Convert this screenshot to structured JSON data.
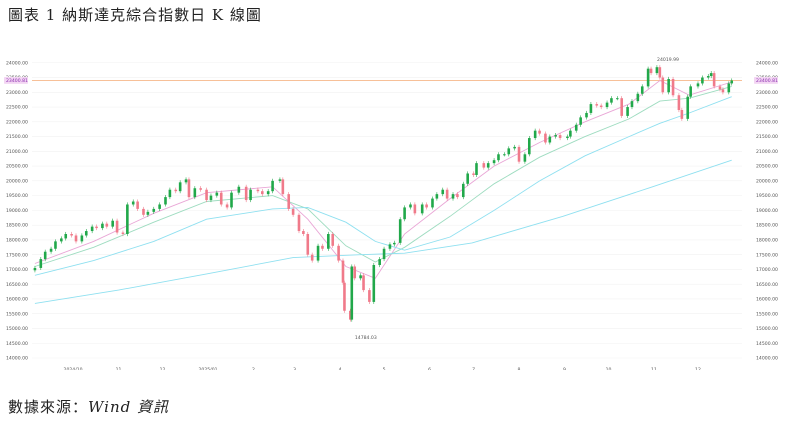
{
  "title": "圖表 1 納斯達克綜合指數日 K 線圖",
  "source": {
    "label": "數據來源：",
    "value": "Wind 資訊"
  },
  "colors": {
    "up": "#21a84a",
    "down": "#f07a8a",
    "ma_short": "#e9a6d6",
    "ma_mid": "#9edcc0",
    "ma_long": "#8fe0f0",
    "price_line": "#f6b78a",
    "price_label_bg": "#f3d6f3"
  },
  "chart_data": {
    "type": "candlestick",
    "title": "",
    "xlabel": "",
    "ylabel": "",
    "ylim": [
      14000,
      24500
    ],
    "yticks": [
      "24000.00",
      "23500.00",
      "23000.00",
      "22500.00",
      "22000.00",
      "21500.00",
      "21000.00",
      "20500.00",
      "20000.00",
      "19500.00",
      "19000.00",
      "18500.00",
      "18000.00",
      "17500.00",
      "17000.00",
      "16500.00",
      "16000.00",
      "15500.00",
      "15000.00",
      "14500.00",
      "14000.00"
    ],
    "x_labels": [
      "2024/10",
      "11",
      "12",
      "2025/01",
      "2",
      "3",
      "4",
      "5",
      "6",
      "7",
      "8",
      "9",
      "10",
      "11",
      "12"
    ],
    "current_price": 23400.81,
    "current_price_label": "23400.81",
    "annotations": [
      {
        "label": "24019.99",
        "value": 24019.99,
        "position": "late-Oct 2025 high"
      },
      {
        "label": "14784.03",
        "value": 14784.03,
        "position": "early-Apr 2025 low"
      }
    ],
    "series": [
      {
        "type": "candlestick",
        "points": [
          {
            "x": "2024-09-05",
            "close": 17050
          },
          {
            "x": "2024-09-09",
            "close": 17350
          },
          {
            "x": "2024-09-12",
            "close": 17600
          },
          {
            "x": "2024-09-16",
            "close": 17700
          },
          {
            "x": "2024-09-19",
            "close": 17950
          },
          {
            "x": "2024-09-23",
            "close": 18050
          },
          {
            "x": "2024-09-26",
            "close": 18200
          },
          {
            "x": "2024-09-30",
            "close": 18150
          },
          {
            "x": "2024-10-03",
            "close": 17950
          },
          {
            "x": "2024-10-07",
            "close": 18150
          },
          {
            "x": "2024-10-10",
            "close": 18300
          },
          {
            "x": "2024-10-14",
            "close": 18450
          },
          {
            "x": "2024-10-17",
            "close": 18400
          },
          {
            "x": "2024-10-21",
            "close": 18550
          },
          {
            "x": "2024-10-24",
            "close": 18450
          },
          {
            "x": "2024-10-28",
            "close": 18650
          },
          {
            "x": "2024-10-31",
            "close": 18250
          },
          {
            "x": "2024-11-04",
            "close": 18200
          },
          {
            "x": "2024-11-07",
            "close": 19200
          },
          {
            "x": "2024-11-11",
            "close": 19300
          },
          {
            "x": "2024-11-14",
            "close": 19050
          },
          {
            "x": "2024-11-18",
            "close": 18850
          },
          {
            "x": "2024-11-21",
            "close": 18950
          },
          {
            "x": "2024-11-25",
            "close": 19050
          },
          {
            "x": "2024-11-29",
            "close": 19200
          },
          {
            "x": "2024-12-03",
            "close": 19450
          },
          {
            "x": "2024-12-06",
            "close": 19700
          },
          {
            "x": "2024-12-10",
            "close": 19650
          },
          {
            "x": "2024-12-13",
            "close": 19950
          },
          {
            "x": "2024-12-17",
            "close": 20050
          },
          {
            "x": "2024-12-19",
            "close": 19450
          },
          {
            "x": "2024-12-23",
            "close": 19750
          },
          {
            "x": "2024-12-27",
            "close": 19700
          },
          {
            "x": "2024-12-31",
            "close": 19350
          },
          {
            "x": "2025-01-03",
            "close": 19500
          },
          {
            "x": "2025-01-07",
            "close": 19600
          },
          {
            "x": "2025-01-10",
            "close": 19200
          },
          {
            "x": "2025-01-14",
            "close": 19100
          },
          {
            "x": "2025-01-17",
            "close": 19600
          },
          {
            "x": "2025-01-22",
            "close": 19800
          },
          {
            "x": "2025-01-27",
            "close": 19350
          },
          {
            "x": "2025-01-30",
            "close": 19700
          },
          {
            "x": "2025-02-04",
            "close": 19650
          },
          {
            "x": "2025-02-07",
            "close": 19550
          },
          {
            "x": "2025-02-11",
            "close": 19650
          },
          {
            "x": "2025-02-14",
            "close": 20000
          },
          {
            "x": "2025-02-19",
            "close": 20050
          },
          {
            "x": "2025-02-21",
            "close": 19550
          },
          {
            "x": "2025-02-25",
            "close": 19050
          },
          {
            "x": "2025-02-28",
            "close": 18850
          },
          {
            "x": "2025-03-04",
            "close": 18300
          },
          {
            "x": "2025-03-07",
            "close": 18200
          },
          {
            "x": "2025-03-10",
            "close": 17500
          },
          {
            "x": "2025-03-13",
            "close": 17300
          },
          {
            "x": "2025-03-17",
            "close": 17800
          },
          {
            "x": "2025-03-20",
            "close": 17700
          },
          {
            "x": "2025-03-24",
            "close": 18200
          },
          {
            "x": "2025-03-27",
            "close": 17800
          },
          {
            "x": "2025-03-31",
            "close": 17300
          },
          {
            "x": "2025-04-03",
            "close": 16550
          },
          {
            "x": "2025-04-04",
            "close": 15600
          },
          {
            "x": "2025-04-08",
            "close": 15300
          },
          {
            "x": "2025-04-09",
            "close": 17100
          },
          {
            "x": "2025-04-11",
            "close": 16700
          },
          {
            "x": "2025-04-15",
            "close": 16800
          },
          {
            "x": "2025-04-17",
            "close": 16300
          },
          {
            "x": "2025-04-21",
            "close": 15900
          },
          {
            "x": "2025-04-24",
            "close": 17150
          },
          {
            "x": "2025-04-28",
            "close": 17350
          },
          {
            "x": "2025-05-01",
            "close": 17700
          },
          {
            "x": "2025-05-05",
            "close": 17850
          },
          {
            "x": "2025-05-08",
            "close": 17900
          },
          {
            "x": "2025-05-12",
            "close": 18700
          },
          {
            "x": "2025-05-15",
            "close": 19100
          },
          {
            "x": "2025-05-19",
            "close": 19200
          },
          {
            "x": "2025-05-22",
            "close": 18900
          },
          {
            "x": "2025-05-27",
            "close": 19200
          },
          {
            "x": "2025-05-30",
            "close": 19100
          },
          {
            "x": "2025-06-03",
            "close": 19400
          },
          {
            "x": "2025-06-06",
            "close": 19550
          },
          {
            "x": "2025-06-10",
            "close": 19700
          },
          {
            "x": "2025-06-13",
            "close": 19400
          },
          {
            "x": "2025-06-17",
            "close": 19550
          },
          {
            "x": "2025-06-20",
            "close": 19450
          },
          {
            "x": "2025-06-24",
            "close": 19900
          },
          {
            "x": "2025-06-27",
            "close": 20250
          },
          {
            "x": "2025-07-01",
            "close": 20200
          },
          {
            "x": "2025-07-03",
            "close": 20600
          },
          {
            "x": "2025-07-08",
            "close": 20450
          },
          {
            "x": "2025-07-11",
            "close": 20600
          },
          {
            "x": "2025-07-15",
            "close": 20700
          },
          {
            "x": "2025-07-18",
            "close": 20900
          },
          {
            "x": "2025-07-22",
            "close": 20900
          },
          {
            "x": "2025-07-25",
            "close": 21100
          },
          {
            "x": "2025-07-29",
            "close": 21150
          },
          {
            "x": "2025-08-01",
            "close": 20650
          },
          {
            "x": "2025-08-05",
            "close": 20900
          },
          {
            "x": "2025-08-08",
            "close": 21450
          },
          {
            "x": "2025-08-12",
            "close": 21700
          },
          {
            "x": "2025-08-15",
            "close": 21600
          },
          {
            "x": "2025-08-19",
            "close": 21300
          },
          {
            "x": "2025-08-22",
            "close": 21500
          },
          {
            "x": "2025-08-26",
            "close": 21550
          },
          {
            "x": "2025-08-29",
            "close": 21450
          },
          {
            "x": "2025-09-03",
            "close": 21500
          },
          {
            "x": "2025-09-05",
            "close": 21700
          },
          {
            "x": "2025-09-09",
            "close": 21900
          },
          {
            "x": "2025-09-12",
            "close": 22150
          },
          {
            "x": "2025-09-16",
            "close": 22300
          },
          {
            "x": "2025-09-19",
            "close": 22600
          },
          {
            "x": "2025-09-23",
            "close": 22550
          },
          {
            "x": "2025-09-26",
            "close": 22500
          },
          {
            "x": "2025-09-30",
            "close": 22650
          },
          {
            "x": "2025-10-03",
            "close": 22800
          },
          {
            "x": "2025-10-07",
            "close": 22800
          },
          {
            "x": "2025-10-10",
            "close": 22200
          },
          {
            "x": "2025-10-14",
            "close": 22500
          },
          {
            "x": "2025-10-17",
            "close": 22700
          },
          {
            "x": "2025-10-21",
            "close": 22950
          },
          {
            "x": "2025-10-24",
            "close": 23200
          },
          {
            "x": "2025-10-28",
            "close": 23800
          },
          {
            "x": "2025-10-30",
            "close": 23650
          },
          {
            "x": "2025-11-03",
            "close": 23850
          },
          {
            "x": "2025-11-05",
            "close": 23500
          },
          {
            "x": "2025-11-07",
            "close": 23000
          },
          {
            "x": "2025-11-11",
            "close": 23450
          },
          {
            "x": "2025-11-14",
            "close": 22900
          },
          {
            "x": "2025-11-18",
            "close": 22400
          },
          {
            "x": "2025-11-20",
            "close": 22100
          },
          {
            "x": "2025-11-24",
            "close": 22850
          },
          {
            "x": "2025-11-26",
            "close": 23200
          },
          {
            "x": "2025-12-01",
            "close": 23300
          },
          {
            "x": "2025-12-04",
            "close": 23500
          },
          {
            "x": "2025-12-08",
            "close": 23550
          },
          {
            "x": "2025-12-10",
            "close": 23650
          },
          {
            "x": "2025-12-12",
            "close": 23200
          },
          {
            "x": "2025-12-16",
            "close": 23100
          },
          {
            "x": "2025-12-18",
            "close": 23000
          },
          {
            "x": "2025-12-22",
            "close": 23300
          },
          {
            "x": "2025-12-24",
            "close": 23400
          }
        ]
      },
      {
        "type": "line",
        "values": [
          {
            "x": "2024-09-05",
            "y": 17200
          },
          {
            "x": "2024-10-15",
            "y": 17950
          },
          {
            "x": "2024-11-25",
            "y": 18900
          },
          {
            "x": "2024-12-31",
            "y": 19600
          },
          {
            "x": "2025-02-14",
            "y": 19800
          },
          {
            "x": "2025-03-10",
            "y": 18700
          },
          {
            "x": "2025-04-05",
            "y": 17100
          },
          {
            "x": "2025-04-25",
            "y": 16700
          },
          {
            "x": "2025-05-15",
            "y": 18200
          },
          {
            "x": "2025-06-15",
            "y": 19400
          },
          {
            "x": "2025-07-15",
            "y": 20500
          },
          {
            "x": "2025-08-15",
            "y": 21300
          },
          {
            "x": "2025-09-15",
            "y": 22000
          },
          {
            "x": "2025-10-15",
            "y": 22600
          },
          {
            "x": "2025-11-05",
            "y": 23400
          },
          {
            "x": "2025-11-25",
            "y": 22900
          },
          {
            "x": "2025-12-24",
            "y": 23350
          }
        ]
      },
      {
        "type": "line",
        "values": [
          {
            "x": "2024-09-05",
            "y": 17100
          },
          {
            "x": "2024-10-15",
            "y": 17750
          },
          {
            "x": "2024-11-25",
            "y": 18600
          },
          {
            "x": "2024-12-31",
            "y": 19300
          },
          {
            "x": "2025-02-14",
            "y": 19500
          },
          {
            "x": "2025-03-10",
            "y": 19050
          },
          {
            "x": "2025-04-05",
            "y": 17800
          },
          {
            "x": "2025-04-25",
            "y": 17250
          },
          {
            "x": "2025-05-15",
            "y": 17750
          },
          {
            "x": "2025-06-15",
            "y": 18800
          },
          {
            "x": "2025-07-15",
            "y": 19900
          },
          {
            "x": "2025-08-15",
            "y": 20800
          },
          {
            "x": "2025-09-15",
            "y": 21500
          },
          {
            "x": "2025-10-15",
            "y": 22100
          },
          {
            "x": "2025-11-05",
            "y": 22700
          },
          {
            "x": "2025-11-25",
            "y": 22800
          },
          {
            "x": "2025-12-24",
            "y": 23200
          }
        ]
      },
      {
        "type": "line",
        "values": [
          {
            "x": "2024-09-05",
            "y": 16800
          },
          {
            "x": "2024-10-15",
            "y": 17300
          },
          {
            "x": "2024-11-25",
            "y": 17950
          },
          {
            "x": "2024-12-31",
            "y": 18700
          },
          {
            "x": "2025-02-14",
            "y": 19050
          },
          {
            "x": "2025-03-10",
            "y": 19100
          },
          {
            "x": "2025-04-05",
            "y": 18600
          },
          {
            "x": "2025-04-25",
            "y": 17950
          },
          {
            "x": "2025-05-15",
            "y": 17650
          },
          {
            "x": "2025-06-15",
            "y": 18100
          },
          {
            "x": "2025-07-15",
            "y": 19000
          },
          {
            "x": "2025-08-15",
            "y": 20000
          },
          {
            "x": "2025-09-15",
            "y": 20850
          },
          {
            "x": "2025-10-15",
            "y": 21500
          },
          {
            "x": "2025-11-05",
            "y": 21950
          },
          {
            "x": "2025-11-25",
            "y": 22300
          },
          {
            "x": "2025-12-24",
            "y": 22850
          }
        ]
      },
      {
        "type": "line",
        "values": [
          {
            "x": "2024-09-05",
            "y": 15850
          },
          {
            "x": "2024-11-01",
            "y": 16300
          },
          {
            "x": "2024-12-31",
            "y": 16850
          },
          {
            "x": "2025-02-28",
            "y": 17400
          },
          {
            "x": "2025-04-15",
            "y": 17500
          },
          {
            "x": "2025-05-15",
            "y": 17550
          },
          {
            "x": "2025-06-30",
            "y": 17900
          },
          {
            "x": "2025-08-31",
            "y": 18800
          },
          {
            "x": "2025-10-31",
            "y": 19800
          },
          {
            "x": "2025-12-24",
            "y": 20700
          }
        ]
      }
    ]
  }
}
